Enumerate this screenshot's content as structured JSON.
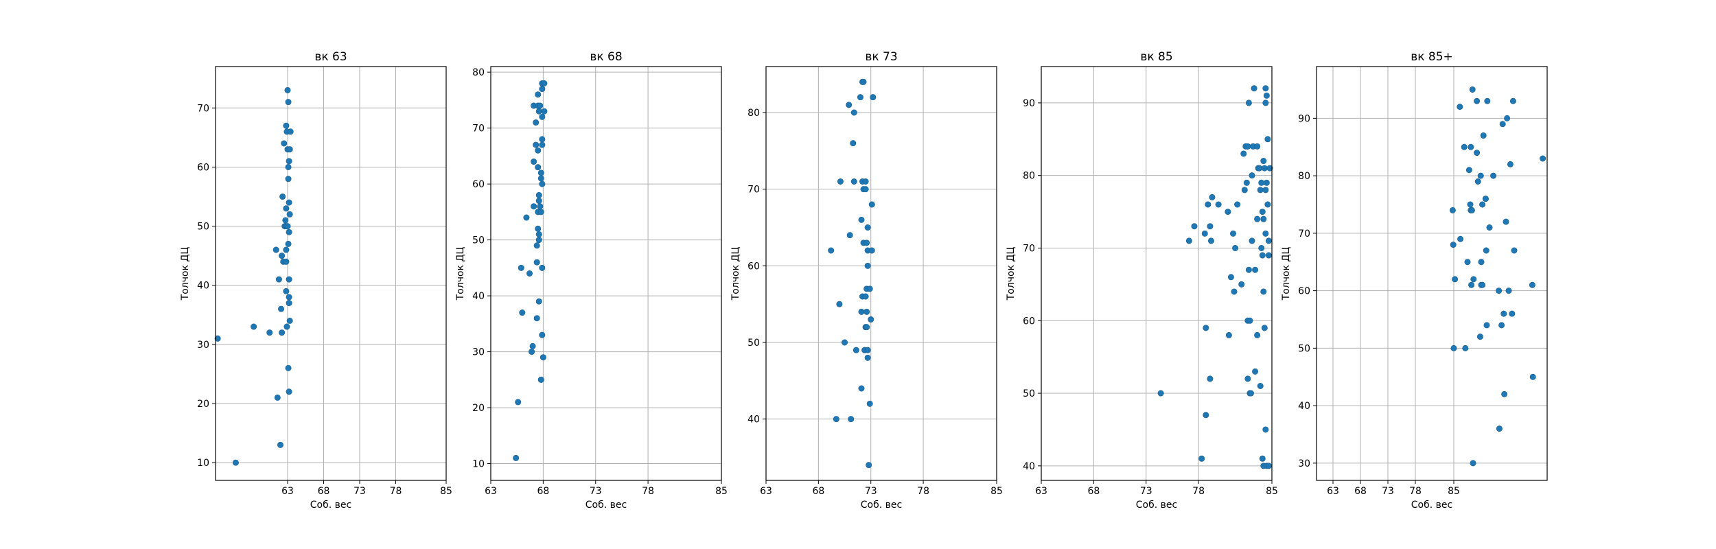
{
  "chart_data": [
    {
      "type": "scatter",
      "title": "вк 63",
      "xlabel": "Соб. вес",
      "ylabel": "Толчок ДЦ",
      "xlim": [
        53.0,
        85.0
      ],
      "ylim": [
        7.0,
        77.0
      ],
      "xticks": [
        63,
        68,
        73,
        78,
        85
      ],
      "yticks": [
        10,
        20,
        30,
        40,
        50,
        60,
        70
      ],
      "grid": true,
      "marker_color": "#1f77b4",
      "points": [
        [
          53.3,
          31
        ],
        [
          55.8,
          10
        ],
        [
          58.3,
          33
        ],
        [
          60.5,
          32
        ],
        [
          61.4,
          46
        ],
        [
          61.8,
          41
        ],
        [
          61.6,
          21
        ],
        [
          62.0,
          13
        ],
        [
          62.2,
          45
        ],
        [
          62.1,
          36
        ],
        [
          62.3,
          55
        ],
        [
          62.2,
          32
        ],
        [
          62.5,
          64
        ],
        [
          62.6,
          50
        ],
        [
          62.4,
          44
        ],
        [
          62.8,
          67
        ],
        [
          62.8,
          53
        ],
        [
          62.7,
          51
        ],
        [
          62.8,
          46
        ],
        [
          62.8,
          44
        ],
        [
          62.8,
          39
        ],
        [
          62.9,
          33
        ],
        [
          62.8,
          50
        ],
        [
          62.9,
          66
        ],
        [
          63.0,
          73
        ],
        [
          63.1,
          71
        ],
        [
          63.0,
          63
        ],
        [
          63.2,
          61
        ],
        [
          63.1,
          58
        ],
        [
          63.2,
          54
        ],
        [
          63.2,
          49
        ],
        [
          63.1,
          47
        ],
        [
          63.2,
          41
        ],
        [
          63.2,
          38
        ],
        [
          63.2,
          37
        ],
        [
          63.3,
          34
        ],
        [
          63.1,
          26
        ],
        [
          63.2,
          22
        ],
        [
          63.4,
          66
        ],
        [
          63.3,
          63
        ],
        [
          63.1,
          60
        ],
        [
          63.3,
          52
        ],
        [
          63.0,
          50
        ]
      ]
    },
    {
      "type": "scatter",
      "title": "вк 68",
      "xlabel": "Соб. вес",
      "ylabel": "Толчок ДЦ",
      "xlim": [
        63.0,
        85.0
      ],
      "ylim": [
        7.0,
        81.0
      ],
      "xticks": [
        63,
        68,
        73,
        78,
        85
      ],
      "yticks": [
        10,
        20,
        30,
        40,
        50,
        60,
        70,
        80
      ],
      "grid": true,
      "marker_color": "#1f77b4",
      "points": [
        [
          65.4,
          11
        ],
        [
          65.6,
          21
        ],
        [
          66.0,
          37
        ],
        [
          65.9,
          45
        ],
        [
          66.4,
          54
        ],
        [
          66.7,
          44
        ],
        [
          66.9,
          30
        ],
        [
          67.0,
          31
        ],
        [
          67.1,
          56
        ],
        [
          67.1,
          64
        ],
        [
          67.3,
          67
        ],
        [
          67.1,
          74
        ],
        [
          67.3,
          71
        ],
        [
          67.4,
          46
        ],
        [
          67.5,
          55
        ],
        [
          67.4,
          49
        ],
        [
          67.5,
          52
        ],
        [
          67.6,
          51
        ],
        [
          67.4,
          36
        ],
        [
          67.6,
          39
        ],
        [
          67.5,
          63
        ],
        [
          67.5,
          66
        ],
        [
          67.6,
          73
        ],
        [
          67.5,
          76
        ],
        [
          67.5,
          74
        ],
        [
          67.7,
          74
        ],
        [
          67.6,
          57
        ],
        [
          67.6,
          58
        ],
        [
          67.6,
          50
        ],
        [
          67.9,
          77
        ],
        [
          67.9,
          78
        ],
        [
          67.9,
          72
        ],
        [
          67.8,
          62
        ],
        [
          67.8,
          61
        ],
        [
          67.7,
          56
        ],
        [
          67.8,
          55
        ],
        [
          67.9,
          68
        ],
        [
          67.9,
          67
        ],
        [
          67.9,
          60
        ],
        [
          67.9,
          45
        ],
        [
          67.9,
          33
        ],
        [
          68.0,
          29
        ],
        [
          67.8,
          25
        ],
        [
          67.8,
          25
        ],
        [
          68.1,
          73
        ],
        [
          68.1,
          78
        ]
      ]
    },
    {
      "type": "scatter",
      "title": "вк 73",
      "xlabel": "Соб. вес",
      "ylabel": "Толчок ДЦ",
      "xlim": [
        63.0,
        85.0
      ],
      "ylim": [
        32.0,
        86.0
      ],
      "xticks": [
        63,
        68,
        73,
        78,
        85
      ],
      "yticks": [
        40,
        50,
        60,
        70,
        80
      ],
      "grid": true,
      "marker_color": "#1f77b4",
      "points": [
        [
          69.2,
          62
        ],
        [
          69.7,
          40
        ],
        [
          70.1,
          71
        ],
        [
          70.0,
          55
        ],
        [
          70.5,
          50
        ],
        [
          70.9,
          81
        ],
        [
          71.0,
          64
        ],
        [
          71.1,
          40
        ],
        [
          71.3,
          76
        ],
        [
          71.4,
          71
        ],
        [
          71.4,
          80
        ],
        [
          71.6,
          49
        ],
        [
          72.1,
          66
        ],
        [
          72.0,
          82
        ],
        [
          72.2,
          84
        ],
        [
          72.3,
          84
        ],
        [
          72.2,
          71
        ],
        [
          72.3,
          63
        ],
        [
          72.2,
          56
        ],
        [
          72.1,
          54
        ],
        [
          72.1,
          44
        ],
        [
          72.3,
          70
        ],
        [
          72.5,
          70
        ],
        [
          72.5,
          71
        ],
        [
          72.6,
          63
        ],
        [
          72.5,
          52
        ],
        [
          72.5,
          56
        ],
        [
          72.4,
          49
        ],
        [
          72.7,
          65
        ],
        [
          72.7,
          62
        ],
        [
          72.6,
          57
        ],
        [
          72.7,
          60
        ],
        [
          72.6,
          54
        ],
        [
          72.6,
          52
        ],
        [
          72.7,
          48
        ],
        [
          72.7,
          49
        ],
        [
          72.8,
          34
        ],
        [
          72.9,
          57
        ],
        [
          72.9,
          42
        ],
        [
          73.1,
          68
        ],
        [
          73.0,
          53
        ],
        [
          73.1,
          62
        ],
        [
          73.2,
          82
        ]
      ]
    },
    {
      "type": "scatter",
      "title": "вк 85",
      "xlabel": "Соб. вес",
      "ylabel": "Толчок ДЦ",
      "xlim": [
        63.0,
        85.0
      ],
      "ylim": [
        38.0,
        95.0
      ],
      "xticks": [
        63,
        68,
        73,
        78,
        85
      ],
      "yticks": [
        40,
        50,
        60,
        70,
        80,
        90
      ],
      "grid": true,
      "marker_color": "#1f77b4",
      "points": [
        [
          74.4,
          50
        ],
        [
          77.1,
          71
        ],
        [
          77.6,
          73
        ],
        [
          78.3,
          41
        ],
        [
          78.6,
          72
        ],
        [
          78.7,
          59
        ],
        [
          78.7,
          47
        ],
        [
          78.9,
          76
        ],
        [
          79.1,
          52
        ],
        [
          79.1,
          73
        ],
        [
          79.2,
          71
        ],
        [
          79.3,
          77
        ],
        [
          79.9,
          76
        ],
        [
          80.8,
          75
        ],
        [
          80.9,
          58
        ],
        [
          81.1,
          66
        ],
        [
          81.3,
          72
        ],
        [
          81.5,
          70
        ],
        [
          81.4,
          64
        ],
        [
          81.7,
          76
        ],
        [
          82.1,
          65
        ],
        [
          82.4,
          78
        ],
        [
          82.3,
          83
        ],
        [
          82.5,
          84
        ],
        [
          82.6,
          79
        ],
        [
          82.7,
          84
        ],
        [
          82.8,
          90
        ],
        [
          82.7,
          60
        ],
        [
          82.8,
          67
        ],
        [
          82.9,
          60
        ],
        [
          82.7,
          52
        ],
        [
          82.9,
          50
        ],
        [
          83.0,
          50
        ],
        [
          83.1,
          71
        ],
        [
          83.1,
          80
        ],
        [
          83.2,
          84
        ],
        [
          83.3,
          92
        ],
        [
          83.4,
          67
        ],
        [
          83.4,
          53
        ],
        [
          83.6,
          84
        ],
        [
          83.6,
          58
        ],
        [
          83.6,
          74
        ],
        [
          83.7,
          81
        ],
        [
          83.8,
          81
        ],
        [
          83.9,
          78
        ],
        [
          84.0,
          70
        ],
        [
          84.1,
          69
        ],
        [
          84.0,
          79
        ],
        [
          83.9,
          51
        ],
        [
          84.1,
          41
        ],
        [
          84.1,
          75
        ],
        [
          84.2,
          82
        ],
        [
          84.3,
          81
        ],
        [
          84.2,
          74
        ],
        [
          84.2,
          64
        ],
        [
          84.2,
          40
        ],
        [
          84.3,
          59
        ],
        [
          84.4,
          78
        ],
        [
          84.4,
          72
        ],
        [
          84.4,
          92
        ],
        [
          84.5,
          91
        ],
        [
          84.4,
          90
        ],
        [
          84.5,
          79
        ],
        [
          84.4,
          45
        ],
        [
          84.5,
          40
        ],
        [
          84.6,
          85
        ],
        [
          84.6,
          76
        ],
        [
          84.7,
          71
        ],
        [
          84.7,
          69
        ],
        [
          84.7,
          40
        ],
        [
          84.8,
          81
        ]
      ]
    },
    {
      "type": "scatter",
      "title": "вк 85+",
      "xlabel": "Соб. вес",
      "ylabel": "Толчок ДЦ",
      "xlim": [
        60.0,
        102.0
      ],
      "ylim": [
        27.0,
        99.0
      ],
      "xticks": [
        63,
        68,
        73,
        78,
        85
      ],
      "yticks": [
        30,
        40,
        50,
        60,
        70,
        80,
        90
      ],
      "grid": true,
      "marker_color": "#1f77b4",
      "points": [
        [
          84.8,
          74
        ],
        [
          84.9,
          68
        ],
        [
          85.0,
          50
        ],
        [
          85.2,
          62
        ],
        [
          86.1,
          92
        ],
        [
          86.2,
          69
        ],
        [
          86.9,
          85
        ],
        [
          87.1,
          50
        ],
        [
          87.5,
          65
        ],
        [
          87.8,
          81
        ],
        [
          88.1,
          85
        ],
        [
          88.0,
          75
        ],
        [
          88.1,
          74
        ],
        [
          88.2,
          61
        ],
        [
          88.3,
          74
        ],
        [
          88.4,
          95
        ],
        [
          88.5,
          30
        ],
        [
          88.6,
          62
        ],
        [
          89.2,
          84
        ],
        [
          89.2,
          93
        ],
        [
          89.4,
          79
        ],
        [
          89.9,
          80
        ],
        [
          89.8,
          52
        ],
        [
          90.0,
          61
        ],
        [
          90.2,
          75
        ],
        [
          90.0,
          65
        ],
        [
          90.2,
          61
        ],
        [
          90.4,
          87
        ],
        [
          90.8,
          76
        ],
        [
          90.8,
          76
        ],
        [
          90.9,
          67
        ],
        [
          91.0,
          54
        ],
        [
          91.1,
          93
        ],
        [
          91.5,
          71
        ],
        [
          92.2,
          80
        ],
        [
          93.2,
          60
        ],
        [
          93.3,
          36
        ],
        [
          93.7,
          54
        ],
        [
          93.9,
          89
        ],
        [
          94.1,
          56
        ],
        [
          94.2,
          42
        ],
        [
          94.5,
          72
        ],
        [
          94.7,
          90
        ],
        [
          95.0,
          60
        ],
        [
          95.3,
          82
        ],
        [
          95.6,
          56
        ],
        [
          95.8,
          93
        ],
        [
          96.0,
          67
        ],
        [
          99.3,
          61
        ],
        [
          99.4,
          45
        ],
        [
          101.2,
          83
        ]
      ]
    }
  ]
}
